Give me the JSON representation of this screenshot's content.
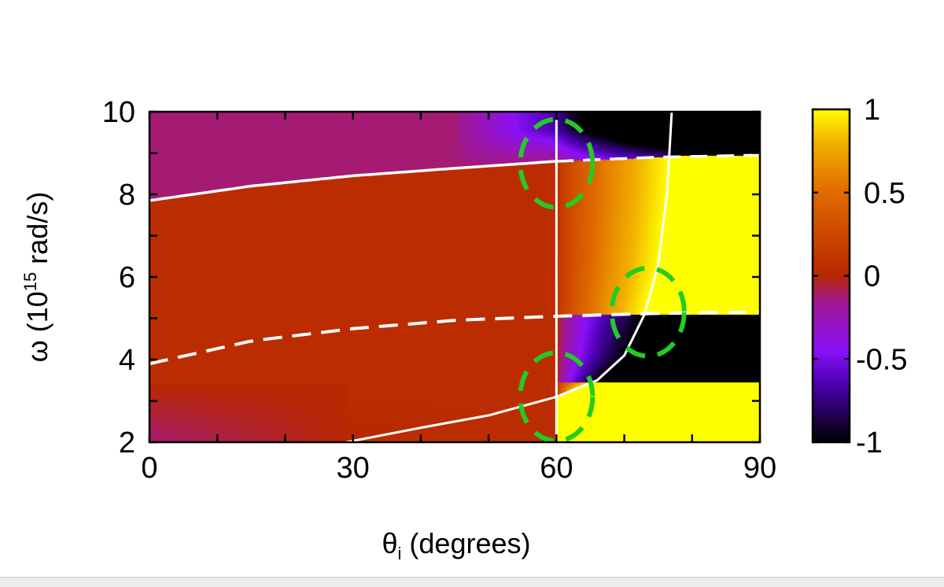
{
  "chart_data": {
    "type": "heatmap",
    "title": "",
    "xlabel": "θ",
    "xlabel_sub": "i",
    "xlabel_units": " (degrees)",
    "ylabel": "ω (10",
    "ylabel_sup": "15",
    "ylabel_units": " rad/s)",
    "xlim": [
      0,
      90
    ],
    "ylim": [
      2,
      10
    ],
    "xticks": [
      0,
      30,
      60,
      90
    ],
    "xtick_labels": [
      "0",
      "30",
      "60",
      "90"
    ],
    "yticks": [
      2,
      4,
      6,
      8,
      10
    ],
    "ytick_labels": [
      "2",
      "4",
      "6",
      "8",
      "10"
    ],
    "colorbar": {
      "range": [
        -1,
        1
      ],
      "ticks": [
        -1,
        -0.5,
        0,
        0.5,
        1
      ],
      "tick_labels": [
        "-1",
        "-0.5",
        "0",
        "0.5",
        "1"
      ],
      "colors": [
        "#000000",
        "#4a00b0",
        "#8a10f8",
        "#a01890",
        "#b82800",
        "#e06a00",
        "#f2b000",
        "#ffff00"
      ]
    },
    "curves": [
      {
        "name": "upper-branch",
        "style": "solid-then-dashed",
        "color": "#ffffff",
        "x": [
          0,
          15,
          30,
          45,
          60,
          75,
          90
        ],
        "y": [
          7.85,
          8.2,
          8.45,
          8.63,
          8.8,
          8.9,
          8.95
        ]
      },
      {
        "name": "lower-dashed-branch",
        "style": "dashed",
        "color": "#ffffff",
        "x": [
          0,
          15,
          30,
          45,
          60,
          75,
          90
        ],
        "y": [
          3.9,
          4.45,
          4.75,
          4.95,
          5.05,
          5.12,
          5.15
        ]
      },
      {
        "name": "steep-branch",
        "style": "solid",
        "color": "#ffffff",
        "x": [
          29,
          40,
          50,
          60,
          66,
          70,
          73,
          75,
          76.3,
          77
        ],
        "y": [
          2,
          2.35,
          2.65,
          3.1,
          3.5,
          4.1,
          5.1,
          6.3,
          8.0,
          10
        ]
      },
      {
        "name": "vertical-line",
        "style": "solid",
        "color": "#ffffff",
        "x": [
          60,
          60
        ],
        "y": [
          2,
          9.8
        ]
      }
    ],
    "bands_beyond_steep_branch": [
      {
        "ymin": 2,
        "ymax": 3.45,
        "value": 1
      },
      {
        "ymin": 3.45,
        "ymax": 5.1,
        "value": -1
      },
      {
        "ymin": 5.1,
        "ymax": 8.95,
        "value": 1
      },
      {
        "ymin": 8.95,
        "ymax": 10,
        "value": -1
      }
    ],
    "annotations": [
      {
        "shape": "dashed-ellipse",
        "color": "#22cc22",
        "x": 60,
        "y": 8.75
      },
      {
        "shape": "dashed-ellipse",
        "color": "#22cc22",
        "x": 73.5,
        "y": 5.15
      },
      {
        "shape": "dashed-ellipse",
        "color": "#22cc22",
        "x": 60,
        "y": 3.1
      }
    ]
  }
}
